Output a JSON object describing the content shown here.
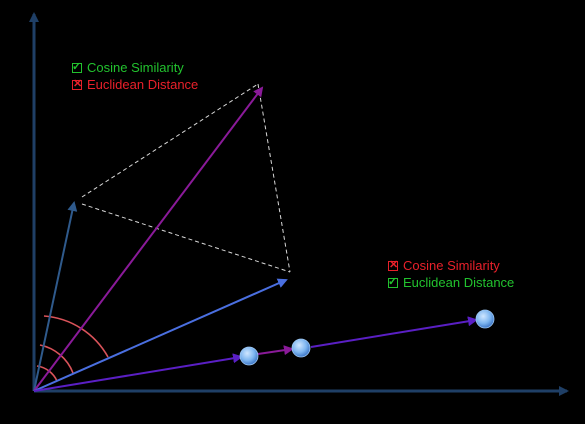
{
  "colors": {
    "background": "#000000",
    "axis": "#1f3f66",
    "green": "#22c22e",
    "red": "#e8202a",
    "vector_blue": "#4a6fe0",
    "vector_dark": "#2f5a8c",
    "vector_purple": "#8a1a99",
    "vector_indigo": "#5a1fc4",
    "angle_arc": "#d9535a",
    "dashed": "#d8d8d8",
    "point": "#7eb6f0"
  },
  "legends": {
    "top": {
      "items": [
        {
          "label": "Cosine Similarity",
          "state": "checked",
          "color": "#22c22e",
          "icon": "check-icon"
        },
        {
          "label": "Euclidean Distance",
          "state": "crossed",
          "color": "#e8202a",
          "icon": "cross-icon"
        }
      ]
    },
    "bottom": {
      "items": [
        {
          "label": "Cosine Similarity",
          "state": "crossed",
          "color": "#e8202a",
          "icon": "cross-icon"
        },
        {
          "label": "Euclidean Distance",
          "state": "checked",
          "color": "#22c22e",
          "icon": "check-icon"
        }
      ]
    }
  }
}
